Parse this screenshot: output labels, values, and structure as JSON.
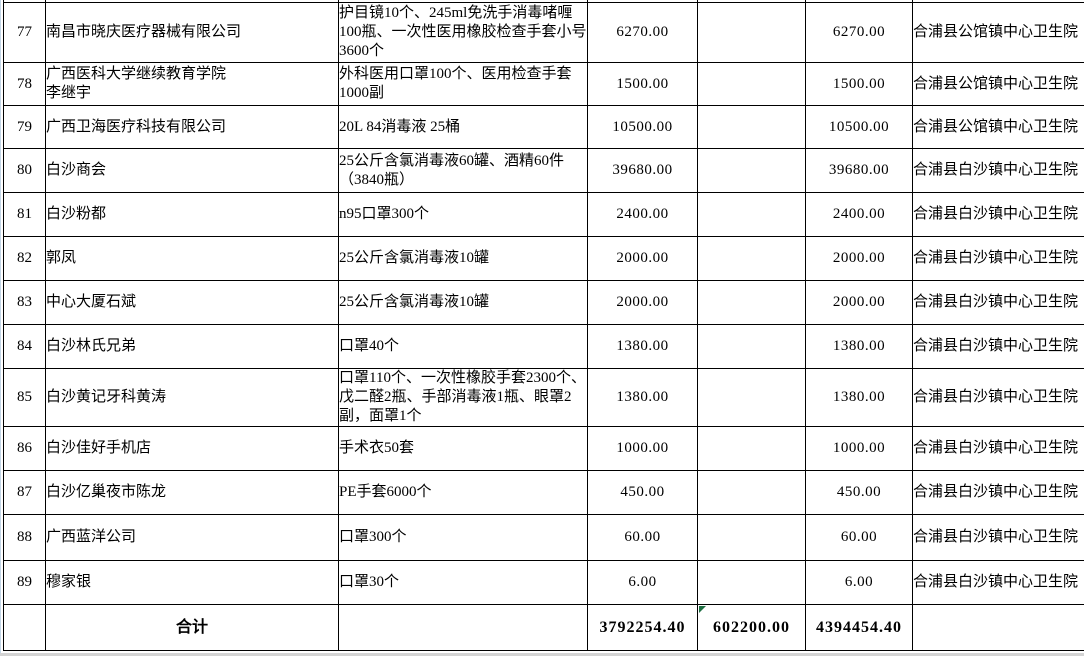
{
  "colors": {
    "border": "#000000",
    "text": "#000000",
    "background": "#ffffff",
    "error_triangle_green": "#1d6f42",
    "left_edge_blue": "#b9cfe3",
    "bottom_strip_gray": "#d3d3d3"
  },
  "table": {
    "rows": [
      {
        "no": "77",
        "donor": "南昌市晓庆医疗器械有限公司",
        "items": "护目镜10个、245ml免洗手消毒啫喱100瓶、一次性医用橡胶检查手套小号 3600个",
        "amount_goods": "6270.00",
        "amount_cash": "",
        "amount_total": "6270.00",
        "recipient": "合浦县公馆镇中心卫生院"
      },
      {
        "no": "78",
        "donor": "广西医科大学继续教育学院\n李继宇",
        "items": "外科医用口罩100个、医用检查手套1000副",
        "amount_goods": "1500.00",
        "amount_cash": "",
        "amount_total": "1500.00",
        "recipient": "合浦县公馆镇中心卫生院"
      },
      {
        "no": "79",
        "donor": "广西卫海医疗科技有限公司",
        "items": "20L 84消毒液 25桶",
        "amount_goods": "10500.00",
        "amount_cash": "",
        "amount_total": "10500.00",
        "recipient": "合浦县公馆镇中心卫生院"
      },
      {
        "no": "80",
        "donor": "白沙商会",
        "items": "25公斤含氯消毒液60罐、酒精60件（3840瓶）",
        "amount_goods": "39680.00",
        "amount_cash": "",
        "amount_total": "39680.00",
        "recipient": "合浦县白沙镇中心卫生院"
      },
      {
        "no": "81",
        "donor": "白沙粉都",
        "items": "n95口罩300个",
        "amount_goods": "2400.00",
        "amount_cash": "",
        "amount_total": "2400.00",
        "recipient": "合浦县白沙镇中心卫生院"
      },
      {
        "no": "82",
        "donor": "郭凤",
        "items": "25公斤含氯消毒液10罐",
        "amount_goods": "2000.00",
        "amount_cash": "",
        "amount_total": "2000.00",
        "recipient": "合浦县白沙镇中心卫生院"
      },
      {
        "no": "83",
        "donor": "中心大厦石斌",
        "items": "25公斤含氯消毒液10罐",
        "amount_goods": "2000.00",
        "amount_cash": "",
        "amount_total": "2000.00",
        "recipient": "合浦县白沙镇中心卫生院"
      },
      {
        "no": "84",
        "donor": "白沙林氏兄弟",
        "items": "口罩40个",
        "amount_goods": "1380.00",
        "amount_cash": "",
        "amount_total": "1380.00",
        "recipient": "合浦县白沙镇中心卫生院"
      },
      {
        "no": "85",
        "donor": "白沙黄记牙科黄涛",
        "items": "口罩110个、一次性橡胶手套2300个、戊二醛2瓶、手部消毒液1瓶、眼罩2副，面罩1个",
        "amount_goods": "1380.00",
        "amount_cash": "",
        "amount_total": "1380.00",
        "recipient": "合浦县白沙镇中心卫生院"
      },
      {
        "no": "86",
        "donor": "白沙佳好手机店",
        "items": "手术衣50套",
        "amount_goods": "1000.00",
        "amount_cash": "",
        "amount_total": "1000.00",
        "recipient": "合浦县白沙镇中心卫生院"
      },
      {
        "no": "87",
        "donor": "白沙亿巢夜市陈龙",
        "items": "PE手套6000个",
        "amount_goods": "450.00",
        "amount_cash": "",
        "amount_total": "450.00",
        "recipient": "合浦县白沙镇中心卫生院"
      },
      {
        "no": "88",
        "donor": "广西蓝洋公司",
        "items": "口罩300个",
        "amount_goods": "60.00",
        "amount_cash": "",
        "amount_total": "60.00",
        "recipient": "合浦县白沙镇中心卫生院"
      },
      {
        "no": "89",
        "donor": "穆家银",
        "items": "口罩30个",
        "amount_goods": "6.00",
        "amount_cash": "",
        "amount_total": "6.00",
        "recipient": "合浦县白沙镇中心卫生院"
      }
    ],
    "total_row": {
      "no": "",
      "label": "合计",
      "items": "",
      "amount_goods": "3792254.40",
      "amount_cash": "602200.00",
      "amount_total": "4394454.40",
      "recipient": ""
    }
  }
}
